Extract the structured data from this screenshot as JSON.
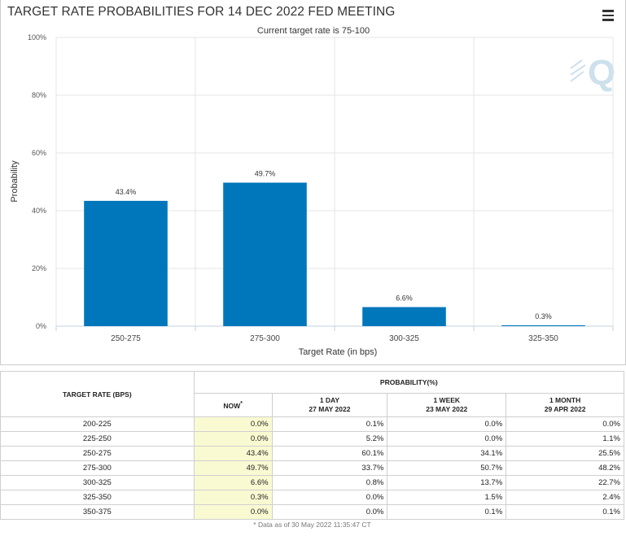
{
  "chart": {
    "title": "TARGET RATE PROBABILITIES FOR 14 DEC 2022 FED MEETING",
    "subtitle": "Current target rate is 75-100",
    "menu_icon": "hamburger-menu-icon",
    "watermark_text": "Q"
  },
  "chart_data": {
    "type": "bar",
    "title": "TARGET RATE PROBABILITIES FOR 14 DEC 2022 FED MEETING",
    "subtitle": "Current target rate is 75-100",
    "categories": [
      "250-275",
      "275-300",
      "300-325",
      "325-350"
    ],
    "values": [
      43.4,
      49.7,
      6.6,
      0.3
    ],
    "value_labels": [
      "43.4%",
      "49.7%",
      "6.6%",
      "0.3%"
    ],
    "xlabel": "Target Rate (in bps)",
    "ylabel": "Probability",
    "ylim": [
      0,
      100
    ],
    "yticks": [
      0,
      20,
      40,
      60,
      80,
      100
    ],
    "ytick_labels": [
      "0%",
      "20%",
      "40%",
      "60%",
      "80%",
      "100%"
    ],
    "bar_color": "#0077bb",
    "grid": true
  },
  "table": {
    "target_header": "TARGET RATE (BPS)",
    "probability_header": "PROBABILITY(%)",
    "columns": [
      {
        "line1": "NOW",
        "line2": "",
        "marker": "*"
      },
      {
        "line1": "1 DAY",
        "line2": "27 MAY 2022",
        "marker": ""
      },
      {
        "line1": "1 WEEK",
        "line2": "23 MAY 2022",
        "marker": ""
      },
      {
        "line1": "1 MONTH",
        "line2": "29 APR 2022",
        "marker": ""
      }
    ],
    "rows": [
      {
        "rate": "200-225",
        "now": "0.0%",
        "day": "0.1%",
        "week": "0.0%",
        "month": "0.0%"
      },
      {
        "rate": "225-250",
        "now": "0.0%",
        "day": "5.2%",
        "week": "0.0%",
        "month": "1.1%"
      },
      {
        "rate": "250-275",
        "now": "43.4%",
        "day": "60.1%",
        "week": "34.1%",
        "month": "25.5%"
      },
      {
        "rate": "275-300",
        "now": "49.7%",
        "day": "33.7%",
        "week": "50.7%",
        "month": "48.2%"
      },
      {
        "rate": "300-325",
        "now": "6.6%",
        "day": "0.8%",
        "week": "13.7%",
        "month": "22.7%"
      },
      {
        "rate": "325-350",
        "now": "0.3%",
        "day": "0.0%",
        "week": "1.5%",
        "month": "2.4%"
      },
      {
        "rate": "350-375",
        "now": "0.0%",
        "day": "0.0%",
        "week": "0.1%",
        "month": "0.1%"
      }
    ],
    "footnote": "* Data as of 30 May 2022 11:35:47 CT",
    "now_highlight_color": "#fafad2"
  }
}
